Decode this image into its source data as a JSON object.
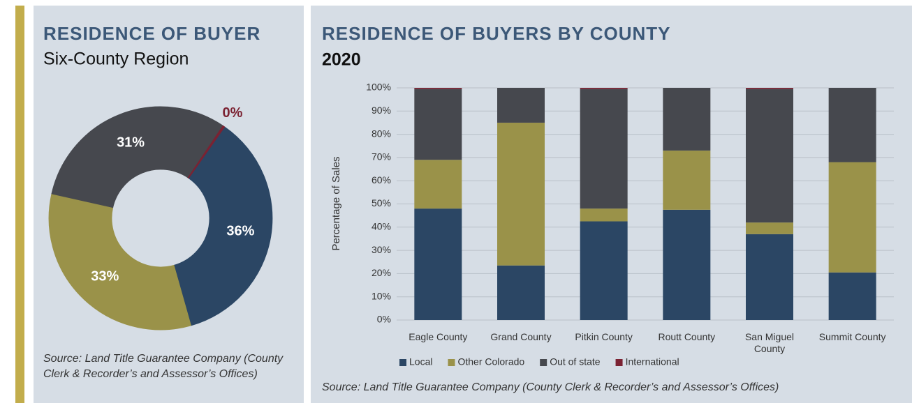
{
  "chart_data": [
    {
      "type": "pie",
      "title": "RESIDENCE OF BUYER",
      "subtitle": "Six-County Region",
      "categories": [
        "Local",
        "Other Colorado",
        "Out of state",
        "International"
      ],
      "values": [
        36,
        33,
        31,
        0.3
      ],
      "value_labels": [
        "36%",
        "33%",
        "31%",
        "0%"
      ],
      "colors": [
        "#2b4664",
        "#9a9249",
        "#46484e",
        "#7b2232"
      ],
      "donut": true,
      "source": "Source: Land Title Guarantee Company (County Clerk & Recorder’s and Assessor’s Offices)"
    },
    {
      "type": "bar",
      "stacked": true,
      "title": "RESIDENCE OF BUYERS BY COUNTY",
      "subtitle": "2020",
      "y_label": "Percentage of Sales",
      "categories": [
        "Eagle County",
        "Grand County",
        "Pitkin County",
        "Routt County",
        "San Miguel County",
        "Summit County"
      ],
      "series": [
        {
          "name": "Local",
          "color": "#2b4664",
          "values": [
            48,
            23.5,
            42.5,
            47.5,
            37,
            20.5
          ]
        },
        {
          "name": "Other Colorado",
          "color": "#9a9249",
          "values": [
            21,
            61.5,
            5.5,
            25.5,
            5,
            47.5
          ]
        },
        {
          "name": "Out of state",
          "color": "#46484e",
          "values": [
            30.5,
            15,
            51.5,
            27,
            57.5,
            32
          ]
        },
        {
          "name": "International",
          "color": "#7b2232",
          "values": [
            0.5,
            0,
            0.5,
            0,
            0.5,
            0
          ]
        }
      ],
      "ylim": [
        0,
        100
      ],
      "yticks": [
        {
          "value": 0,
          "label": "0%"
        },
        {
          "value": 10,
          "label": "10%"
        },
        {
          "value": 20,
          "label": "20%"
        },
        {
          "value": 30,
          "label": "30%"
        },
        {
          "value": 40,
          "label": "40%"
        },
        {
          "value": 50,
          "label": "50%"
        },
        {
          "value": 60,
          "label": "60%"
        },
        {
          "value": 70,
          "label": "70%"
        },
        {
          "value": 80,
          "label": "80%"
        },
        {
          "value": 90,
          "label": "90%"
        },
        {
          "value": 100,
          "label": "100%"
        }
      ],
      "grid": true,
      "legend": "bottom",
      "source": "Source: Land Title Guarantee Company (County Clerk & Recorder’s and Assessor’s Offices)"
    }
  ]
}
